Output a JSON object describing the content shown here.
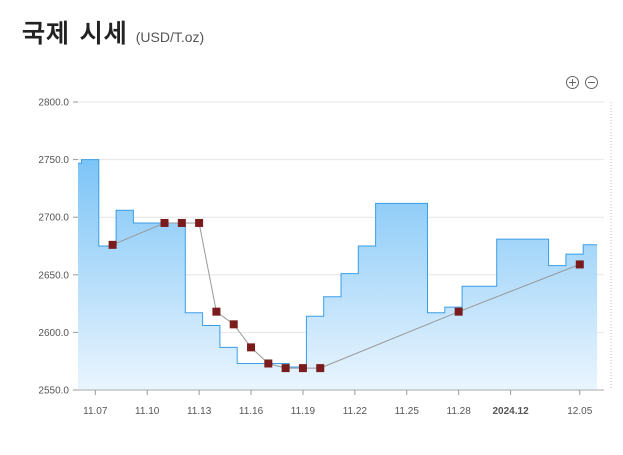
{
  "header": {
    "title": "국제 시세",
    "unit": "(USD/T.oz)"
  },
  "zoom": {
    "zoom_in_icon": "plus-circle-icon",
    "zoom_out_icon": "minus-circle-icon"
  },
  "colors": {
    "area_top": "#7cc4f7",
    "area_bottom": "#eaf5fe",
    "step_line": "#3a9ee6",
    "marker": "#7b1c1c",
    "trend_line": "#999999",
    "grid": "#e6e6e6"
  },
  "chart_data": {
    "type": "area",
    "title": "",
    "xlabel": "",
    "ylabel": "",
    "ylim": [
      2550,
      2800
    ],
    "yticks": [
      "2800.0",
      "2750.0",
      "2700.0",
      "2650.0",
      "2600.0",
      "2550.0"
    ],
    "ytick_values": [
      2800,
      2750,
      2700,
      2650,
      2600,
      2550
    ],
    "xticks": [
      {
        "day": 0,
        "label": "11.07",
        "bold": false
      },
      {
        "day": 3,
        "label": "11.10",
        "bold": false
      },
      {
        "day": 6,
        "label": "11.13",
        "bold": false
      },
      {
        "day": 9,
        "label": "11.16",
        "bold": false
      },
      {
        "day": 12,
        "label": "11.19",
        "bold": false
      },
      {
        "day": 15,
        "label": "11.22",
        "bold": false
      },
      {
        "day": 18,
        "label": "11.25",
        "bold": false
      },
      {
        "day": 21,
        "label": "11.28",
        "bold": false
      },
      {
        "day": 24,
        "label": "2024.12",
        "bold": true
      },
      {
        "day": 28,
        "label": "12.05",
        "bold": false
      }
    ],
    "x_domain": [
      -1,
      29.4
    ],
    "step_series": [
      {
        "day": -1,
        "value": 2747
      },
      {
        "day": -0.8,
        "value": 2750
      },
      {
        "day": 0.2,
        "value": 2675
      },
      {
        "day": 1.2,
        "value": 2706
      },
      {
        "day": 2.2,
        "value": 2695
      },
      {
        "day": 5.2,
        "value": 2617
      },
      {
        "day": 6.2,
        "value": 2606
      },
      {
        "day": 7.2,
        "value": 2587
      },
      {
        "day": 8.2,
        "value": 2573
      },
      {
        "day": 11.2,
        "value": 2570
      },
      {
        "day": 12.2,
        "value": 2614
      },
      {
        "day": 13.2,
        "value": 2631
      },
      {
        "day": 14.2,
        "value": 2651
      },
      {
        "day": 15.2,
        "value": 2675
      },
      {
        "day": 16.2,
        "value": 2712
      },
      {
        "day": 19.2,
        "value": 2617
      },
      {
        "day": 20.2,
        "value": 2622
      },
      {
        "day": 21.2,
        "value": 2640
      },
      {
        "day": 23.2,
        "value": 2681
      },
      {
        "day": 26.2,
        "value": 2658
      },
      {
        "day": 27.2,
        "value": 2668
      },
      {
        "day": 28.2,
        "value": 2676
      },
      {
        "day": 29.0,
        "value": 2676
      }
    ],
    "points": [
      {
        "day": 1,
        "value": 2676
      },
      {
        "day": 4,
        "value": 2695
      },
      {
        "day": 5,
        "value": 2695
      },
      {
        "day": 6,
        "value": 2695
      },
      {
        "day": 7,
        "value": 2618
      },
      {
        "day": 8,
        "value": 2607
      },
      {
        "day": 9,
        "value": 2587
      },
      {
        "day": 10,
        "value": 2573
      },
      {
        "day": 11,
        "value": 2569
      },
      {
        "day": 12,
        "value": 2569
      },
      {
        "day": 13,
        "value": 2569
      },
      {
        "day": 21,
        "value": 2618
      },
      {
        "day": 28,
        "value": 2659
      }
    ]
  }
}
